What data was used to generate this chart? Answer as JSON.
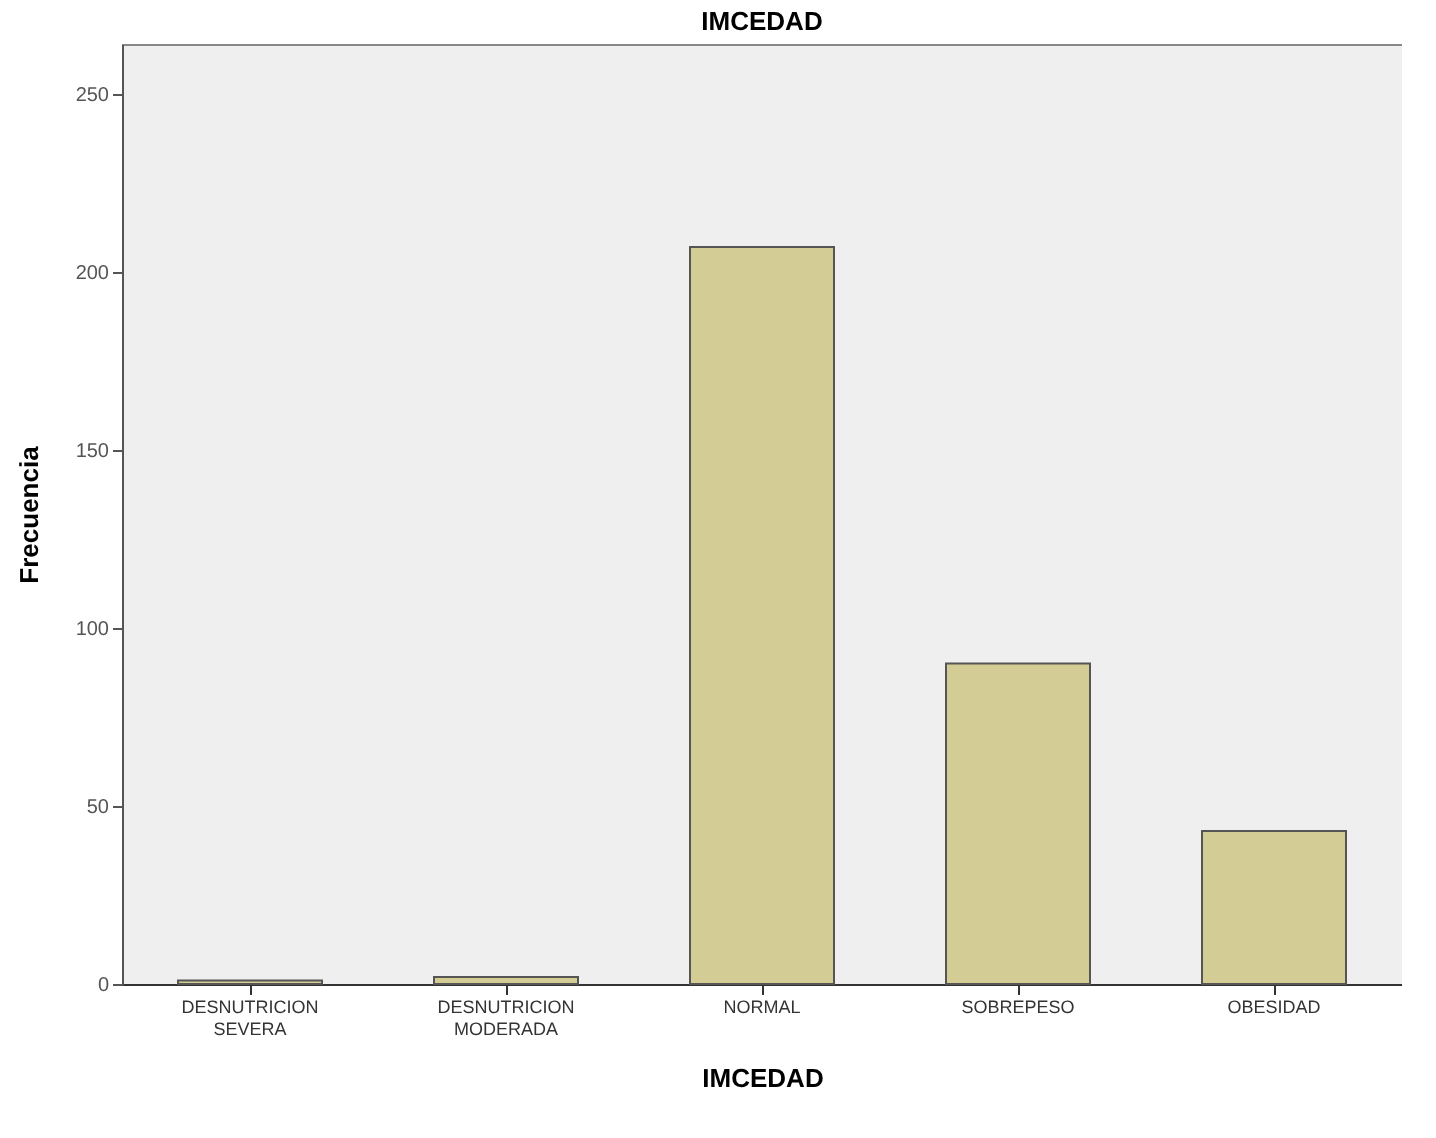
{
  "chart_data": {
    "type": "bar",
    "title": "IMCEDAD",
    "xlabel": "IMCEDAD",
    "ylabel": "Frecuencia",
    "categories": [
      "DESNUTRICION SEVERA",
      "DESNUTRICION MODERADA",
      "NORMAL",
      "SOBREPESO",
      "OBESIDAD"
    ],
    "values": [
      1,
      2,
      207,
      90,
      43
    ],
    "color": "#d3cd95",
    "ylim": [
      0,
      264
    ],
    "yticks": [
      0,
      50,
      100,
      150,
      200,
      250
    ]
  }
}
